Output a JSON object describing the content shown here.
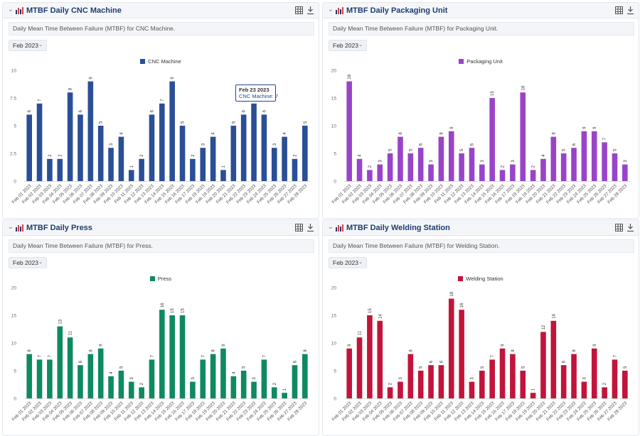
{
  "panels": [
    {
      "id": "cnc",
      "title": "MTBF Daily CNC Machine",
      "description": "Daily Mean Time Between Failure (MTBF) for CNC Machine.",
      "period": "Feb 2023",
      "color": "#2a4f96"
    },
    {
      "id": "packaging",
      "title": "MTBF Daily Packaging Unit",
      "description": "Daily Mean Time Between Failure (MTBF) for Packaging Unit.",
      "period": "Feb 2023",
      "color": "#9944c8"
    },
    {
      "id": "press",
      "title": "MTBF Daily Press",
      "description": "Daily Mean Time Between Failure (MTBF) for Press.",
      "period": "Feb 2023",
      "color": "#0e8a5f"
    },
    {
      "id": "welding",
      "title": "MTBF Daily Welding Station",
      "description": "Daily Mean Time Between Failure (MTBF) for Welding Station.",
      "period": "Feb 2023",
      "color": "#c2143a"
    }
  ],
  "tooltip": {
    "title": "Feb 23 2023",
    "body": "CNC Machine: 7"
  },
  "chart_data": [
    {
      "type": "bar",
      "title": "MTBF Daily CNC Machine",
      "series": [
        {
          "name": "CNC Machine",
          "values": [
            6,
            7,
            2,
            2,
            8,
            6,
            9,
            5,
            3,
            4,
            1,
            2,
            6,
            7,
            9,
            5,
            2,
            3,
            4,
            1,
            5,
            6,
            7,
            6,
            3,
            4,
            2,
            5
          ]
        }
      ],
      "categories": [
        "Feb 01 2023",
        "Feb 02 2023",
        "Feb 03 2023",
        "Feb 04 2023",
        "Feb 05 2023",
        "Feb 06 2023",
        "Feb 07 2023",
        "Feb 08 2023",
        "Feb 09 2023",
        "Feb 10 2023",
        "Feb 11 2023",
        "Feb 12 2023",
        "Feb 13 2023",
        "Feb 14 2023",
        "Feb 15 2023",
        "Feb 16 2023",
        "Feb 17 2023",
        "Feb 18 2023",
        "Feb 19 2023",
        "Feb 20 2023",
        "Feb 21 2023",
        "Feb 22 2023",
        "Feb 23 2023",
        "Feb 24 2023",
        "Feb 25 2023",
        "Feb 26 2023",
        "Feb 27 2023",
        "Feb 28 2023"
      ],
      "ylim": [
        0,
        10
      ],
      "yticks": [
        "0",
        "2.5",
        "5",
        "7.5",
        "10"
      ],
      "ytick_values": [
        0,
        2.5,
        5,
        7.5,
        10
      ],
      "legend": "top-center"
    },
    {
      "type": "bar",
      "title": "MTBF Daily Packaging Unit",
      "series": [
        {
          "name": "Packaging Unit",
          "values": [
            18,
            4,
            2,
            3,
            5,
            8,
            5,
            6,
            3,
            8,
            9,
            5,
            6,
            3,
            15,
            2,
            3,
            16,
            2,
            4,
            8,
            5,
            6,
            9,
            9,
            7,
            5,
            3
          ]
        }
      ],
      "categories": [
        "Feb 01 2023",
        "Feb 02 2023",
        "Feb 03 2023",
        "Feb 04 2023",
        "Feb 05 2023",
        "Feb 06 2023",
        "Feb 07 2023",
        "Feb 08 2023",
        "Feb 09 2023",
        "Feb 10 2023",
        "Feb 11 2023",
        "Feb 12 2023",
        "Feb 13 2023",
        "Feb 14 2023",
        "Feb 15 2023",
        "Feb 16 2023",
        "Feb 17 2023",
        "Feb 18 2023",
        "Feb 19 2023",
        "Feb 20 2023",
        "Feb 21 2023",
        "Feb 22 2023",
        "Feb 23 2023",
        "Feb 24 2023",
        "Feb 25 2023",
        "Feb 26 2023",
        "Feb 27 2023",
        "Feb 28 2023"
      ],
      "ylim": [
        0,
        20
      ],
      "yticks": [
        "0",
        "5",
        "10",
        "15",
        "20"
      ],
      "ytick_values": [
        0,
        5,
        10,
        15,
        20
      ],
      "legend": "top-center"
    },
    {
      "type": "bar",
      "title": "MTBF Daily Press",
      "series": [
        {
          "name": "Press",
          "values": [
            8,
            7,
            7,
            13,
            11,
            6,
            8,
            9,
            4,
            5,
            3,
            2,
            7,
            16,
            15,
            15,
            3,
            7,
            8,
            9,
            4,
            5,
            3,
            7,
            2,
            1,
            6,
            8
          ]
        }
      ],
      "categories": [
        "Feb 01 2023",
        "Feb 02 2023",
        "Feb 03 2023",
        "Feb 04 2023",
        "Feb 05 2023",
        "Feb 06 2023",
        "Feb 07 2023",
        "Feb 08 2023",
        "Feb 09 2023",
        "Feb 10 2023",
        "Feb 11 2023",
        "Feb 12 2023",
        "Feb 13 2023",
        "Feb 14 2023",
        "Feb 15 2023",
        "Feb 16 2023",
        "Feb 17 2023",
        "Feb 18 2023",
        "Feb 19 2023",
        "Feb 20 2023",
        "Feb 21 2023",
        "Feb 22 2023",
        "Feb 23 2023",
        "Feb 24 2023",
        "Feb 25 2023",
        "Feb 26 2023",
        "Feb 27 2023",
        "Feb 28 2023"
      ],
      "ylim": [
        0,
        20
      ],
      "yticks": [
        "0",
        "5",
        "10",
        "15",
        "20"
      ],
      "ytick_values": [
        0,
        5,
        10,
        15,
        20
      ],
      "legend": "top-center"
    },
    {
      "type": "bar",
      "title": "MTBF Daily Welding Station",
      "series": [
        {
          "name": "Welding Station",
          "values": [
            9,
            11,
            15,
            14,
            2,
            3,
            8,
            5,
            6,
            6,
            18,
            16,
            3,
            5,
            7,
            9,
            8,
            5,
            1,
            12,
            14,
            6,
            8,
            3,
            9,
            2,
            7,
            5
          ]
        }
      ],
      "categories": [
        "Feb 01 2023",
        "Feb 02 2023",
        "Feb 03 2023",
        "Feb 04 2023",
        "Feb 05 2023",
        "Feb 06 2023",
        "Feb 07 2023",
        "Feb 08 2023",
        "Feb 09 2023",
        "Feb 10 2023",
        "Feb 11 2023",
        "Feb 12 2023",
        "Feb 13 2023",
        "Feb 14 2023",
        "Feb 15 2023",
        "Feb 16 2023",
        "Feb 17 2023",
        "Feb 18 2023",
        "Feb 19 2023",
        "Feb 20 2023",
        "Feb 21 2023",
        "Feb 22 2023",
        "Feb 23 2023",
        "Feb 24 2023",
        "Feb 25 2023",
        "Feb 26 2023",
        "Feb 27 2023",
        "Feb 28 2023"
      ],
      "ylim": [
        0,
        20
      ],
      "yticks": [
        "0",
        "5",
        "10",
        "15",
        "20"
      ],
      "ytick_values": [
        0,
        5,
        10,
        15,
        20
      ],
      "legend": "top-center"
    }
  ]
}
